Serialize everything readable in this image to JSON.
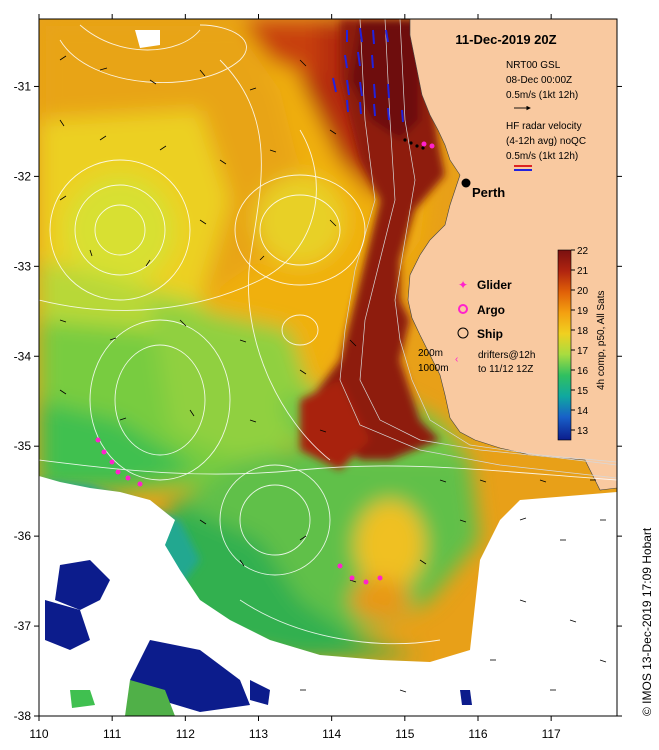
{
  "map": {
    "title": "11-Dec-2019 20Z",
    "city": "Perth",
    "credit": "© IMOS 13-Dec-2019 17:09 Hobart",
    "x_ticks": [
      "110",
      "111",
      "112",
      "113",
      "114",
      "115",
      "116",
      "117"
    ],
    "y_ticks": [
      "-31",
      "-32",
      "-33",
      "-34",
      "-35",
      "-36",
      "-37",
      "-38"
    ],
    "lon_range": [
      110,
      117.9
    ],
    "lat_range": [
      -38,
      -30.25
    ]
  },
  "legend": {
    "gsl": [
      "NRT00 GSL",
      "08-Dec 00:00Z",
      "0.5m/s (1kt 12h)"
    ],
    "radar": [
      "HF radar velocity",
      "(4-12h avg) noQC",
      "0.5m/s (1kt 12h)"
    ],
    "glider": "Glider",
    "argo": "Argo",
    "ship": "Ship",
    "depth_200": "200m",
    "depth_1000": "1000m",
    "drifters": [
      "drifters@12h",
      "to 11/12 12Z"
    ]
  },
  "colorbar": {
    "label": "4h comp, p50, All Sats",
    "ticks": [
      "22",
      "21",
      "20",
      "19",
      "18",
      "17",
      "16",
      "15",
      "14",
      "13"
    ],
    "min": 12.5,
    "max": 22,
    "colors": [
      "#7a1010",
      "#a21c10",
      "#cc3c0c",
      "#e86a08",
      "#f4a010",
      "#f0d020",
      "#c8e040",
      "#78d040",
      "#30c060",
      "#10a890",
      "#1478c8",
      "#1840c0",
      "#0c1c8c"
    ]
  },
  "colors": {
    "land": "#f9c9a0",
    "no_data": "#ffffff",
    "radar_arrow": "#2222dd",
    "marker": "#ff22cc"
  }
}
